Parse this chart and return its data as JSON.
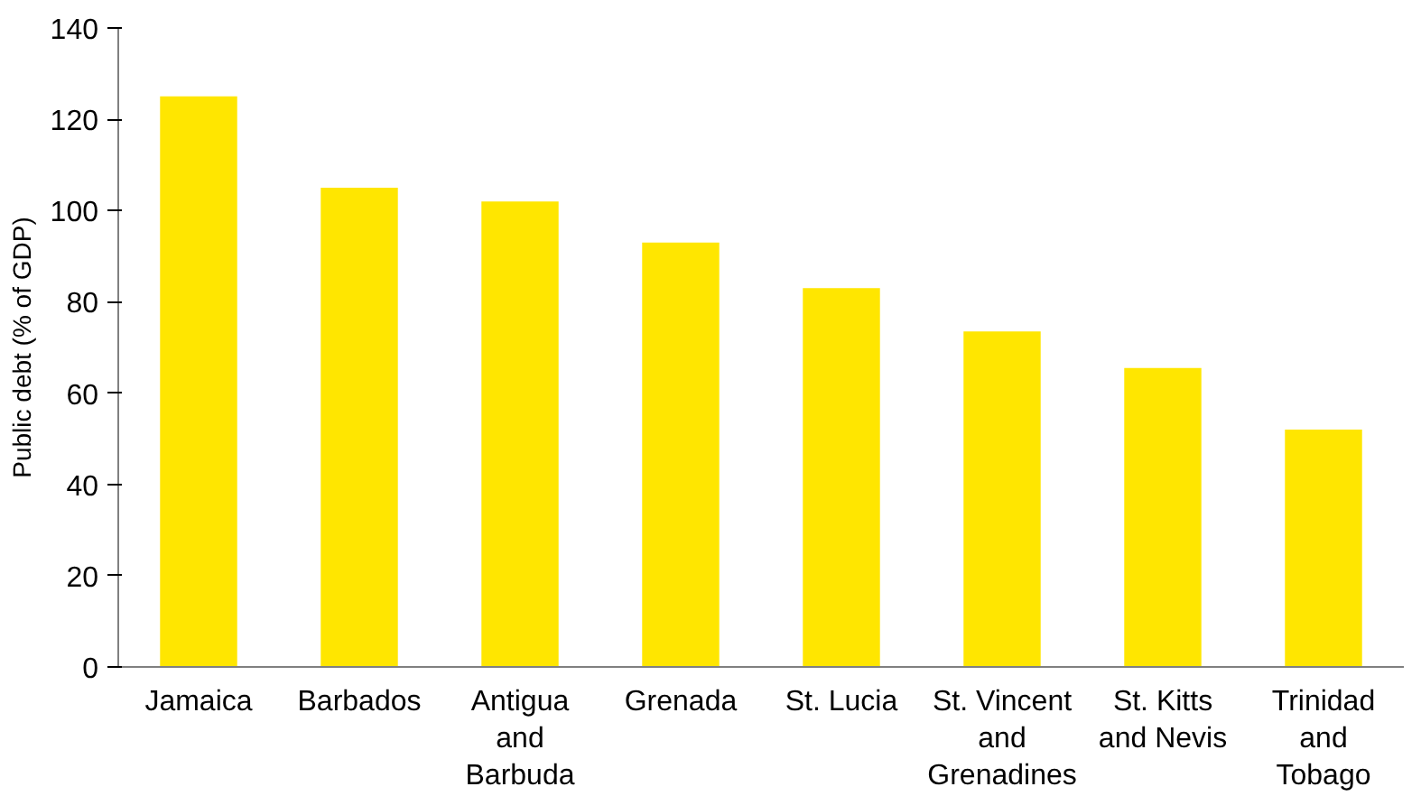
{
  "chart_data": {
    "type": "bar",
    "ylabel": "Public debt (% of GDP)",
    "categories": [
      "Jamaica",
      "Barbados",
      "Antigua\nand\nBarbuda",
      "Grenada",
      "St. Lucia",
      "St. Vincent\nand\nGrenadines",
      "St. Kitts\nand Nevis",
      "Trinidad\nand\nTobago"
    ],
    "values": [
      125,
      105,
      102,
      93,
      83,
      73.5,
      65.5,
      52
    ],
    "color": "#ffe600",
    "ylim": [
      0,
      140
    ],
    "yticks": [
      0,
      20,
      40,
      60,
      80,
      100,
      120,
      140
    ],
    "grid": false
  }
}
